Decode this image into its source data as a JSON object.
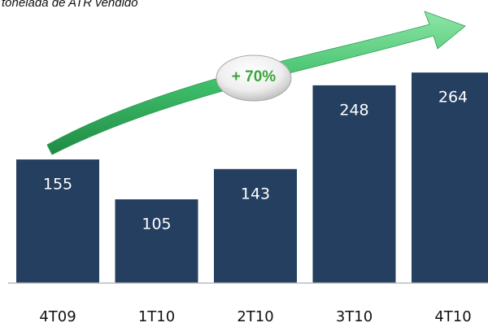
{
  "chart_data": {
    "type": "bar",
    "title": "tonelada de ATR vendido",
    "annotation": "+ 70%",
    "categories": [
      "4T09",
      "1T10",
      "2T10",
      "3T10",
      "4T10"
    ],
    "values": [
      155,
      105,
      143,
      248,
      264
    ],
    "color": "#243f60",
    "ylim": [
      0,
      355
    ]
  }
}
